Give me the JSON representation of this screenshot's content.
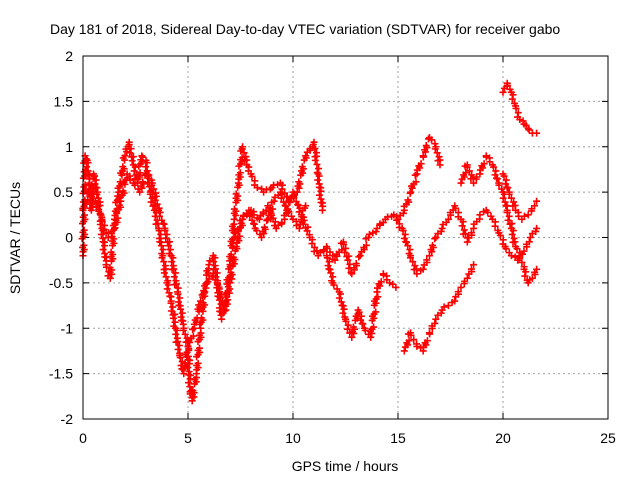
{
  "chart_data": {
    "type": "scatter",
    "title": "Day 181 of 2018, Sidereal Day-to-day VTEC variation (SDTVAR) for receiver gabo",
    "xlabel": "GPS time / hours",
    "ylabel": "SDTVAR / TECUs",
    "xlim": [
      0,
      25
    ],
    "ylim": [
      -2,
      2
    ],
    "xticks": [
      "0",
      "5",
      "10",
      "15",
      "20",
      "25"
    ],
    "yticks": [
      "2",
      "1.5",
      "1",
      "0.5",
      "0",
      "-0.5",
      "-1",
      "-1.5",
      "-2"
    ],
    "grid": true,
    "marker": "+",
    "color": "#ff0000",
    "series": [
      {
        "x": [
          0.0,
          0.1,
          0.2,
          0.3,
          0.4,
          0.5,
          0.7,
          0.9,
          1.1,
          1.3,
          1.5,
          1.7,
          2.0,
          2.2,
          2.4,
          2.6,
          2.8,
          3.0,
          3.2,
          3.4,
          3.6,
          3.8,
          4.0,
          4.2,
          4.4,
          4.6,
          4.8,
          5.0,
          5.1,
          5.2,
          5.4,
          5.6,
          5.8,
          6.0,
          6.2,
          6.4,
          6.6,
          6.8,
          7.0,
          7.2,
          7.4,
          7.6,
          7.8,
          8.0,
          8.3,
          8.6,
          9.0,
          9.4,
          9.8,
          10.2,
          10.6,
          11.0,
          11.2,
          11.4
        ],
        "y": [
          -0.2,
          0.9,
          0.85,
          0.6,
          0.3,
          0.7,
          0.5,
          0.1,
          -0.3,
          -0.45,
          0.2,
          0.5,
          0.9,
          1.05,
          0.8,
          0.6,
          0.9,
          0.85,
          0.5,
          0.3,
          0.1,
          -0.2,
          -0.5,
          -0.7,
          -1.0,
          -1.3,
          -1.5,
          -1.2,
          -1.7,
          -1.8,
          -1.5,
          -1.0,
          -0.6,
          -0.3,
          -0.2,
          -0.5,
          -0.9,
          -0.7,
          -0.3,
          0.2,
          0.6,
          1.0,
          0.8,
          0.7,
          0.55,
          0.5,
          0.55,
          0.6,
          0.4,
          0.5,
          0.9,
          1.05,
          0.7,
          0.3
        ]
      },
      {
        "x": [
          0.0,
          0.3,
          0.6,
          0.9,
          1.2,
          1.5,
          1.8,
          2.1,
          2.4,
          2.7,
          3.0,
          3.3,
          3.6,
          3.9,
          4.2,
          4.5,
          4.8,
          5.0,
          5.3,
          5.6,
          5.9,
          6.2,
          6.5,
          6.8,
          7.0,
          7.3,
          7.6,
          7.9,
          8.2,
          8.5,
          8.8,
          9.1,
          9.4,
          9.7,
          10.0,
          10.3,
          10.6
        ],
        "y": [
          0.3,
          0.5,
          0.4,
          0.2,
          0.0,
          0.1,
          0.4,
          0.7,
          0.6,
          0.5,
          0.7,
          0.6,
          0.3,
          0.1,
          -0.2,
          -0.6,
          -1.0,
          -1.2,
          -1.0,
          -0.7,
          -0.5,
          -0.4,
          -0.6,
          -0.8,
          -0.5,
          -0.1,
          0.2,
          0.3,
          0.1,
          0.0,
          0.2,
          0.4,
          0.5,
          0.3,
          0.2,
          0.1,
          0.35
        ]
      },
      {
        "x": [
          7.2,
          7.6,
          8.0,
          8.4,
          8.8,
          9.2,
          9.6,
          10.0,
          10.4,
          10.8,
          11.2,
          11.6,
          12.0,
          12.4,
          12.8,
          13.2,
          13.6,
          14.0,
          14.4,
          14.8,
          15.2,
          15.6,
          15.9,
          16.2,
          16.5,
          16.8,
          17.1,
          17.4,
          17.7,
          18.0,
          18.3,
          18.6,
          18.9,
          19.2,
          19.5,
          19.8,
          20.1,
          20.4,
          20.7,
          21.0,
          21.3,
          21.6
        ],
        "y": [
          0.0,
          0.2,
          0.3,
          0.2,
          0.35,
          0.1,
          0.2,
          0.5,
          0.25,
          0.0,
          -0.2,
          -0.1,
          -0.25,
          -0.05,
          -0.4,
          -0.2,
          0.0,
          0.1,
          0.2,
          0.25,
          0.1,
          -0.2,
          -0.4,
          -0.35,
          -0.2,
          0.0,
          0.1,
          0.2,
          0.35,
          0.2,
          -0.05,
          0.1,
          0.25,
          0.3,
          0.2,
          0.05,
          -0.1,
          -0.2,
          -0.25,
          -0.15,
          0.0,
          0.1
        ]
      },
      {
        "x": [
          11.6,
          11.9,
          12.2,
          12.5,
          12.8,
          13.1,
          13.4,
          13.7,
          14.0,
          14.3,
          14.6,
          14.9
        ],
        "y": [
          -0.2,
          -0.5,
          -0.6,
          -0.9,
          -1.1,
          -0.8,
          -1.0,
          -1.1,
          -0.6,
          -0.4,
          -0.5,
          -0.55
        ]
      },
      {
        "x": [
          15.0,
          15.3,
          15.6,
          15.9,
          16.2,
          16.5,
          16.8,
          17.0
        ],
        "y": [
          0.2,
          0.3,
          0.5,
          0.7,
          0.9,
          1.1,
          1.0,
          0.8
        ]
      },
      {
        "x": [
          15.3,
          15.6,
          15.9,
          16.2,
          16.5,
          16.8,
          17.1,
          17.4,
          17.7,
          18.0,
          18.3,
          18.6
        ],
        "y": [
          -1.25,
          -1.05,
          -1.2,
          -1.25,
          -1.05,
          -0.9,
          -0.8,
          -0.75,
          -0.7,
          -0.55,
          -0.45,
          -0.3
        ]
      },
      {
        "x": [
          18.0,
          18.3,
          18.6,
          18.9,
          19.2,
          19.5,
          19.8,
          20.0,
          20.2,
          20.4,
          20.6,
          20.8,
          21.0,
          21.2,
          21.4,
          21.6
        ],
        "y": [
          0.6,
          0.8,
          0.6,
          0.7,
          0.9,
          0.8,
          0.6,
          0.5,
          0.3,
          0.1,
          -0.1,
          -0.2,
          -0.35,
          -0.5,
          -0.45,
          -0.35
        ]
      },
      {
        "x": [
          20.0,
          20.2,
          20.4,
          20.6,
          20.8,
          21.0,
          21.2,
          21.4,
          21.6
        ],
        "y": [
          1.6,
          1.7,
          1.6,
          1.45,
          1.3,
          1.25,
          1.2,
          1.15,
          1.15
        ]
      },
      {
        "x": [
          20.0,
          20.3,
          20.6,
          20.9,
          21.2,
          21.5,
          21.6
        ],
        "y": [
          0.7,
          0.5,
          0.3,
          0.2,
          0.25,
          0.35,
          0.4
        ]
      }
    ]
  }
}
